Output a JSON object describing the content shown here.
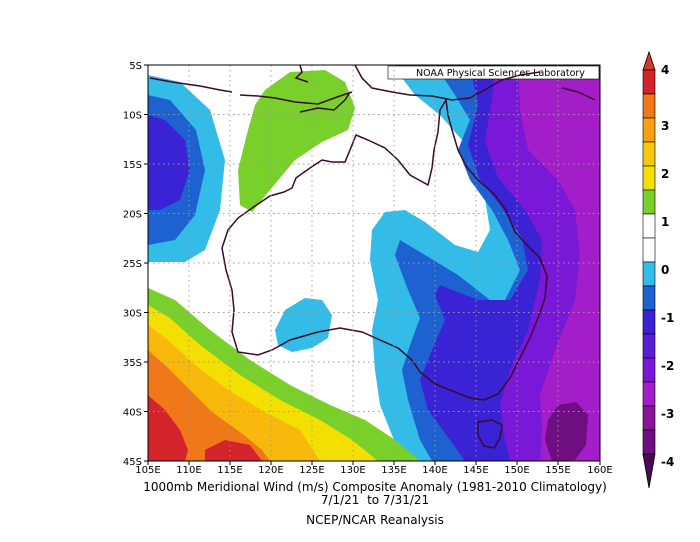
{
  "map": {
    "title_line1": "1000mb Meridional Wind (m/s) Composite Anomaly (1981-2010 Climatology)",
    "title_line2": "7/1/21  to 7/31/21",
    "title_line3": "NCEP/NCAR Reanalysis",
    "credit": "NOAA Physical Sciences Laboratory",
    "lon_labels": [
      "105E",
      "110E",
      "115E",
      "120E",
      "125E",
      "130E",
      "135E",
      "140E",
      "145E",
      "150E",
      "155E",
      "160E"
    ],
    "lat_labels": [
      "5S",
      "10S",
      "15S",
      "20S",
      "25S",
      "30S",
      "35S",
      "40S",
      "45S"
    ],
    "lon_range": [
      105,
      160
    ],
    "lat_range": [
      -5,
      -45
    ]
  },
  "colorbar": {
    "labels": [
      "4",
      "3",
      "2",
      "1",
      "0",
      "-1",
      "-2",
      "-3",
      "-4"
    ],
    "colors": [
      "#d4232b",
      "#f07818",
      "#f8b80c",
      "#f4e000",
      "#7ad02a",
      "#ffffff",
      "#33bce8",
      "#1e62d2",
      "#3a23d4",
      "#7a18d8",
      "#a31ec8",
      "#6e0e80",
      "#d03a28"
    ]
  }
}
